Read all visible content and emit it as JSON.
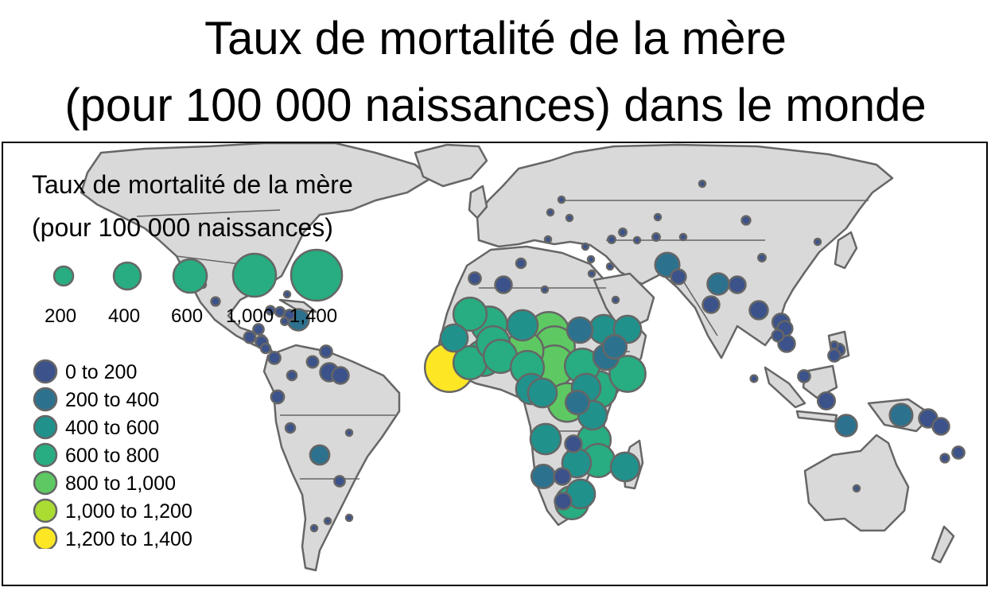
{
  "title_line1": "Taux de mortalité de la mère",
  "title_line2": "(pour 100 000 naissances) dans le monde",
  "legend": {
    "title_line1": "Taux de mortalité de la mère",
    "title_line2": "(pour 100 000 naissances)",
    "size_items": [
      {
        "label": "200",
        "value": 200
      },
      {
        "label": "400",
        "value": 400
      },
      {
        "label": "600",
        "value": 600
      },
      {
        "label": "1,000",
        "value": 1000
      },
      {
        "label": "1,400",
        "value": 1400
      }
    ],
    "color_classes": [
      {
        "label": "0 to 200",
        "color": "#3b528b"
      },
      {
        "label": "200 to 400",
        "color": "#2c728e"
      },
      {
        "label": "400 to 600",
        "color": "#21918c"
      },
      {
        "label": "600 to 800",
        "color": "#27ad81"
      },
      {
        "label": "800 to 1,000",
        "color": "#5ec962"
      },
      {
        "label": "1,000 to 1,200",
        "color": "#aadc32"
      },
      {
        "label": "1,200 to 1,400",
        "color": "#fde725"
      }
    ]
  },
  "colors": {
    "land": "#d9d9d9",
    "border": "#666666",
    "symbol_stroke": "#666666",
    "size_legend_fill": "#27ad81"
  }
}
